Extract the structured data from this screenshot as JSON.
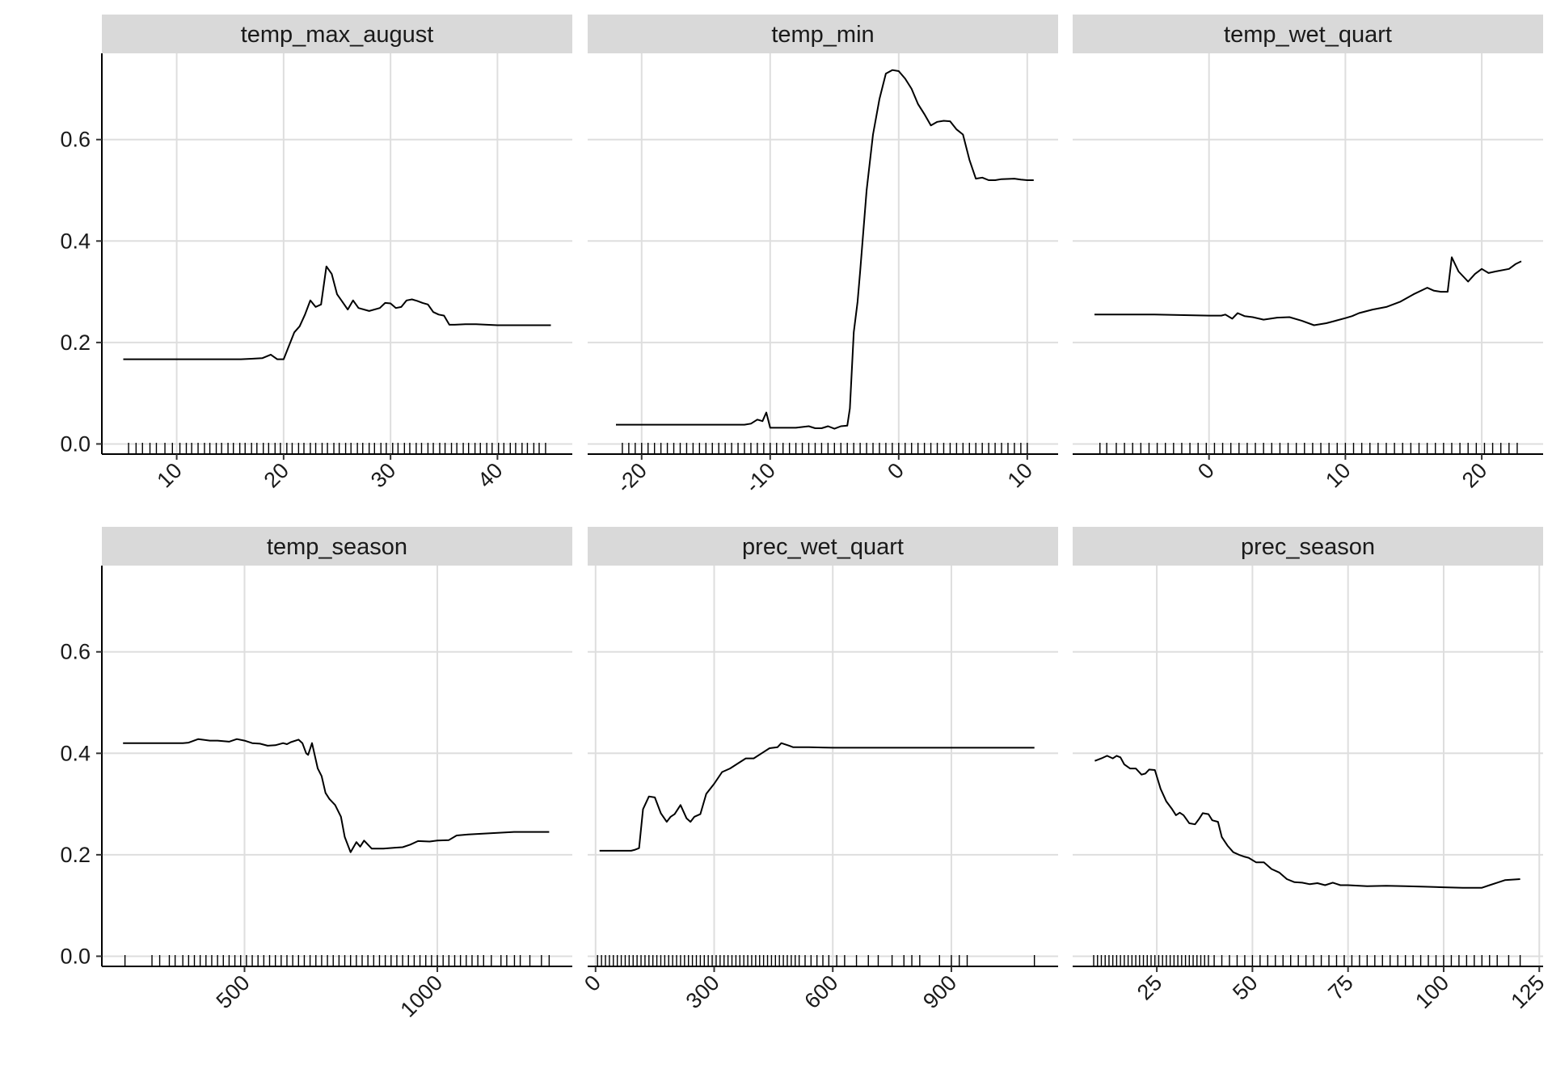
{
  "chart_data": [
    {
      "type": "line",
      "title": "temp_max_august",
      "xlabel": "",
      "ylabel": "",
      "xlim": [
        3,
        47
      ],
      "ylim": [
        -0.02,
        0.77
      ],
      "x_ticks": [
        10,
        20,
        30,
        40
      ],
      "x_tick_labels": [
        "10",
        "20",
        "30",
        "40"
      ],
      "y_ticks": [
        0.0,
        0.2,
        0.4,
        0.6
      ],
      "y_tick_labels": [
        "0.0",
        "0.2",
        "0.4",
        "0.6"
      ],
      "grid": true,
      "series": [
        {
          "x": [
            5,
            10,
            15,
            16,
            17,
            18,
            18.8,
            19.4,
            20,
            21,
            21.5,
            22,
            22.5,
            23,
            23.5,
            24,
            24.5,
            25,
            25.5,
            26,
            26.5,
            27,
            28,
            29,
            29.5,
            30,
            30.5,
            31,
            31.5,
            32,
            32.5,
            33,
            33.5,
            34,
            34.5,
            35,
            35.5,
            36,
            37,
            38,
            39,
            40,
            45
          ],
          "values": [
            0.167,
            0.167,
            0.167,
            0.167,
            0.168,
            0.169,
            0.176,
            0.167,
            0.167,
            0.22,
            0.232,
            0.255,
            0.283,
            0.27,
            0.275,
            0.35,
            0.335,
            0.295,
            0.28,
            0.265,
            0.283,
            0.268,
            0.262,
            0.268,
            0.278,
            0.277,
            0.268,
            0.27,
            0.283,
            0.285,
            0.282,
            0.278,
            0.275,
            0.26,
            0.255,
            0.253,
            0.235,
            0.235,
            0.236,
            0.236,
            0.235,
            0.234,
            0.234
          ]
        }
      ],
      "rug": [
        5.5,
        6.2,
        6.8,
        7.5,
        8.1,
        8.9,
        9.6,
        10.3,
        10.9,
        11.4,
        12.0,
        12.6,
        13.1,
        13.7,
        14.2,
        14.8,
        15.3,
        15.9,
        16.4,
        17.0,
        17.5,
        18.1,
        18.6,
        19.2,
        19.7,
        20.3,
        20.8,
        21.4,
        21.9,
        22.5,
        23.0,
        23.6,
        24.1,
        24.7,
        25.2,
        25.8,
        26.3,
        26.9,
        27.4,
        28.0,
        28.5,
        29.1,
        29.6,
        30.2,
        30.7,
        31.3,
        31.8,
        32.4,
        32.9,
        33.5,
        34.0,
        34.6,
        35.1,
        35.7,
        36.2,
        36.8,
        37.3,
        37.9,
        38.4,
        39.0,
        39.5,
        40.1,
        40.6,
        41.2,
        41.7,
        42.3,
        42.8,
        43.4,
        43.9,
        44.5
      ]
    },
    {
      "type": "line",
      "title": "temp_min",
      "xlabel": "",
      "ylabel": "",
      "xlim": [
        -24.2,
        12.4
      ],
      "ylim": [
        -0.02,
        0.77
      ],
      "x_ticks": [
        -20,
        -10,
        0,
        10
      ],
      "x_tick_labels": [
        "-20",
        "-10",
        "0",
        "10"
      ],
      "y_ticks": [
        0.0,
        0.2,
        0.4,
        0.6
      ],
      "y_tick_labels": [
        "0.0",
        "0.2",
        "0.4",
        "0.6"
      ],
      "grid": true,
      "series": [
        {
          "x": [
            -22,
            -15,
            -12,
            -11.5,
            -11,
            -10.6,
            -10.3,
            -10,
            -8,
            -7,
            -6.5,
            -6,
            -5.5,
            -5,
            -4.5,
            -4,
            -3.8,
            -3.5,
            -3.2,
            -3,
            -2.5,
            -2,
            -1.5,
            -1,
            -0.5,
            0,
            0.5,
            1,
            1.5,
            2,
            2.5,
            3,
            3.5,
            4,
            4.5,
            5,
            5.5,
            6,
            6.5,
            7,
            7.5,
            8,
            9,
            9.5,
            10,
            10.5
          ],
          "values": [
            0.038,
            0.038,
            0.038,
            0.04,
            0.048,
            0.045,
            0.062,
            0.032,
            0.032,
            0.035,
            0.031,
            0.031,
            0.035,
            0.03,
            0.035,
            0.036,
            0.07,
            0.22,
            0.28,
            0.34,
            0.5,
            0.61,
            0.68,
            0.73,
            0.737,
            0.735,
            0.72,
            0.7,
            0.67,
            0.65,
            0.628,
            0.635,
            0.637,
            0.636,
            0.62,
            0.61,
            0.56,
            0.523,
            0.525,
            0.52,
            0.52,
            0.522,
            0.523,
            0.521,
            0.52,
            0.52
          ]
        }
      ],
      "rug": [
        -21.5,
        -21.0,
        -20.5,
        -20.0,
        -19.5,
        -19.0,
        -18.5,
        -18.0,
        -17.5,
        -17.0,
        -16.5,
        -16.0,
        -15.5,
        -15.0,
        -14.5,
        -14.0,
        -13.5,
        -13.0,
        -12.5,
        -12.0,
        -11.5,
        -11.0,
        -10.5,
        -10.0,
        -9.5,
        -9.0,
        -8.5,
        -8.0,
        -7.5,
        -7.0,
        -6.5,
        -6.0,
        -5.5,
        -5.0,
        -4.5,
        -4.0,
        -3.5,
        -3.0,
        -2.5,
        -2.0,
        -1.5,
        -1.0,
        -0.5,
        0.0,
        0.5,
        1.0,
        1.5,
        2.0,
        2.5,
        3.0,
        3.5,
        4.0,
        4.5,
        5.0,
        5.5,
        6.0,
        6.5,
        7.0,
        7.5,
        8.0,
        8.5,
        9.0,
        9.5,
        10.0
      ]
    },
    {
      "type": "line",
      "title": "temp_wet_quart",
      "xlabel": "",
      "ylabel": "",
      "xlim": [
        -10,
        24.5
      ],
      "ylim": [
        -0.02,
        0.77
      ],
      "x_ticks": [
        0,
        10,
        20
      ],
      "x_tick_labels": [
        "0",
        "10",
        "20"
      ],
      "y_ticks": [
        0.0,
        0.2,
        0.4,
        0.6
      ],
      "y_tick_labels": [
        "0.0",
        "0.2",
        "0.4",
        "0.6"
      ],
      "grid": true,
      "series": [
        {
          "x": [
            -8.4,
            -4,
            0,
            0.9,
            1.2,
            1.7,
            2.1,
            2.6,
            3.2,
            4,
            5,
            5.9,
            6.8,
            7.7,
            8.6,
            9.3,
            10,
            10.5,
            11,
            12,
            13,
            14,
            15,
            16,
            16.5,
            17,
            17.5,
            17.8,
            18.3,
            19,
            19.5,
            20,
            20.5,
            21,
            22,
            22.5,
            22.9
          ],
          "values": [
            0.255,
            0.255,
            0.253,
            0.253,
            0.255,
            0.247,
            0.258,
            0.252,
            0.25,
            0.245,
            0.249,
            0.25,
            0.243,
            0.234,
            0.238,
            0.243,
            0.248,
            0.252,
            0.258,
            0.265,
            0.27,
            0.28,
            0.295,
            0.308,
            0.302,
            0.3,
            0.3,
            0.368,
            0.34,
            0.32,
            0.335,
            0.345,
            0.337,
            0.34,
            0.345,
            0.355,
            0.36
          ]
        }
      ],
      "rug": [
        -8.0,
        -7.5,
        -6.8,
        -6.2,
        -5.6,
        -5.0,
        -4.4,
        -3.8,
        -3.2,
        -2.6,
        -2.0,
        -1.4,
        -0.8,
        -0.2,
        0.4,
        1.0,
        1.6,
        2.2,
        2.8,
        3.4,
        4.0,
        4.6,
        5.2,
        5.8,
        6.4,
        7.0,
        7.6,
        8.2,
        8.8,
        9.4,
        10.0,
        10.6,
        11.2,
        11.8,
        12.4,
        13.0,
        13.6,
        14.2,
        14.8,
        15.4,
        16.0,
        16.6,
        17.2,
        17.8,
        18.4,
        19.0,
        19.6,
        20.2,
        20.8,
        21.4,
        22.0,
        22.6
      ]
    },
    {
      "type": "line",
      "title": "temp_season",
      "xlabel": "",
      "ylabel": "",
      "xlim": [
        130,
        1350
      ],
      "ylim": [
        -0.02,
        0.77
      ],
      "x_ticks": [
        500,
        1000
      ],
      "x_tick_labels": [
        "500",
        "1000"
      ],
      "y_ticks": [
        0.0,
        0.2,
        0.4,
        0.6
      ],
      "y_tick_labels": [
        "0.0",
        "0.2",
        "0.4",
        "0.6"
      ],
      "grid": true,
      "series": [
        {
          "x": [
            185,
            300,
            340,
            355,
            380,
            410,
            430,
            460,
            480,
            500,
            520,
            540,
            560,
            580,
            600,
            610,
            620,
            640,
            650,
            660,
            665,
            675,
            690,
            700,
            710,
            720,
            735,
            750,
            760,
            775,
            790,
            800,
            810,
            830,
            860,
            890,
            910,
            930,
            950,
            980,
            1000,
            1030,
            1050,
            1080,
            1200,
            1290
          ],
          "values": [
            0.42,
            0.42,
            0.42,
            0.421,
            0.428,
            0.425,
            0.425,
            0.423,
            0.428,
            0.425,
            0.42,
            0.419,
            0.415,
            0.416,
            0.42,
            0.418,
            0.422,
            0.427,
            0.42,
            0.4,
            0.397,
            0.42,
            0.37,
            0.355,
            0.322,
            0.31,
            0.298,
            0.275,
            0.235,
            0.205,
            0.225,
            0.216,
            0.228,
            0.212,
            0.212,
            0.214,
            0.215,
            0.22,
            0.227,
            0.226,
            0.228,
            0.229,
            0.238,
            0.24,
            0.245,
            0.245
          ]
        }
      ],
      "rug": [
        190,
        260,
        280,
        305,
        320,
        340,
        355,
        370,
        385,
        400,
        415,
        430,
        445,
        460,
        475,
        490,
        505,
        520,
        535,
        550,
        565,
        580,
        595,
        610,
        625,
        640,
        655,
        670,
        685,
        700,
        715,
        730,
        745,
        760,
        775,
        790,
        805,
        820,
        835,
        850,
        865,
        880,
        895,
        910,
        925,
        940,
        955,
        970,
        985,
        1000,
        1015,
        1030,
        1045,
        1060,
        1075,
        1090,
        1105,
        1120,
        1140,
        1165,
        1180,
        1200,
        1215,
        1240,
        1270,
        1290
      ]
    },
    {
      "type": "line",
      "title": "prec_wet_quart",
      "xlabel": "",
      "ylabel": "",
      "xlim": [
        -20,
        1170
      ],
      "ylim": [
        -0.02,
        0.77
      ],
      "x_ticks": [
        0,
        300,
        600,
        900
      ],
      "x_tick_labels": [
        "0",
        "300",
        "600",
        "900"
      ],
      "y_ticks": [
        0.0,
        0.2,
        0.4,
        0.6
      ],
      "y_tick_labels": [
        "0.0",
        "0.2",
        "0.4",
        "0.6"
      ],
      "grid": true,
      "series": [
        {
          "x": [
            10,
            90,
            100,
            110,
            120,
            135,
            150,
            165,
            180,
            190,
            200,
            215,
            230,
            240,
            250,
            265,
            280,
            300,
            320,
            340,
            360,
            380,
            400,
            420,
            440,
            460,
            470,
            490,
            500,
            540,
            600,
            700,
            800,
            900,
            1000,
            1110
          ],
          "values": [
            0.208,
            0.208,
            0.21,
            0.213,
            0.29,
            0.315,
            0.313,
            0.282,
            0.265,
            0.275,
            0.28,
            0.298,
            0.272,
            0.265,
            0.275,
            0.28,
            0.32,
            0.34,
            0.363,
            0.37,
            0.38,
            0.39,
            0.39,
            0.4,
            0.41,
            0.412,
            0.42,
            0.415,
            0.412,
            0.412,
            0.411,
            0.411,
            0.411,
            0.411,
            0.411,
            0.411
          ]
        }
      ],
      "rug": [
        5,
        15,
        25,
        35,
        45,
        55,
        65,
        75,
        85,
        95,
        105,
        115,
        125,
        135,
        145,
        155,
        165,
        175,
        185,
        195,
        205,
        215,
        225,
        235,
        245,
        255,
        265,
        275,
        285,
        295,
        305,
        315,
        325,
        335,
        345,
        355,
        365,
        375,
        385,
        395,
        405,
        415,
        425,
        435,
        445,
        455,
        465,
        475,
        485,
        495,
        505,
        515,
        530,
        545,
        560,
        575,
        590,
        610,
        630,
        660,
        690,
        715,
        750,
        780,
        800,
        820,
        870,
        900,
        920,
        940,
        1110
      ]
    },
    {
      "type": "line",
      "title": "prec_season",
      "xlabel": "",
      "ylabel": "",
      "xlim": [
        3,
        126
      ],
      "ylim": [
        -0.02,
        0.77
      ],
      "x_ticks": [
        25,
        50,
        75,
        100,
        125
      ],
      "x_tick_labels": [
        "25",
        "50",
        "75",
        "100",
        "125"
      ],
      "y_ticks": [
        0.0,
        0.2,
        0.4,
        0.6
      ],
      "y_tick_labels": [
        "0.0",
        "0.2",
        "0.4",
        "0.6"
      ],
      "grid": true,
      "series": [
        {
          "x": [
            8.8,
            10.5,
            12,
            13.5,
            14.5,
            15.5,
            16.5,
            18,
            19.5,
            21,
            22,
            23,
            24.5,
            26,
            27.5,
            29,
            30,
            31,
            32,
            33.5,
            35,
            36,
            37,
            38.5,
            39.5,
            41,
            42,
            43.5,
            45,
            46.5,
            48,
            49,
            51,
            53,
            55,
            57,
            59,
            61,
            63,
            65,
            67,
            69,
            71,
            73,
            75,
            80,
            85,
            90,
            95,
            100,
            105,
            108,
            110,
            112,
            114,
            116,
            120
          ],
          "values": [
            0.385,
            0.39,
            0.395,
            0.39,
            0.395,
            0.392,
            0.378,
            0.37,
            0.37,
            0.358,
            0.36,
            0.368,
            0.367,
            0.33,
            0.305,
            0.29,
            0.278,
            0.283,
            0.278,
            0.262,
            0.26,
            0.27,
            0.282,
            0.28,
            0.268,
            0.265,
            0.235,
            0.218,
            0.205,
            0.2,
            0.196,
            0.194,
            0.185,
            0.185,
            0.172,
            0.165,
            0.152,
            0.146,
            0.145,
            0.142,
            0.144,
            0.14,
            0.145,
            0.14,
            0.14,
            0.138,
            0.139,
            0.138,
            0.137,
            0.136,
            0.135,
            0.135,
            0.135,
            0.14,
            0.145,
            0.15,
            0.152
          ]
        }
      ],
      "rug": [
        8.5,
        9.5,
        10.5,
        11.5,
        12.5,
        13.5,
        14.5,
        15.5,
        16.5,
        17.5,
        18.5,
        19.5,
        20.5,
        21.5,
        22.5,
        23.5,
        24.5,
        25.5,
        26.5,
        27.5,
        28.5,
        29.5,
        30.5,
        31.5,
        32.5,
        33.5,
        34.5,
        35.5,
        36.5,
        37.5,
        38.5,
        40,
        42,
        44,
        46,
        48,
        50,
        52,
        54,
        56,
        58,
        60,
        62,
        64,
        66,
        68,
        70,
        72,
        74,
        76,
        78,
        80,
        82,
        84,
        86,
        88,
        90,
        92,
        94,
        96,
        98,
        100,
        102,
        104,
        106,
        108,
        110,
        112,
        114,
        117,
        120
      ]
    }
  ]
}
